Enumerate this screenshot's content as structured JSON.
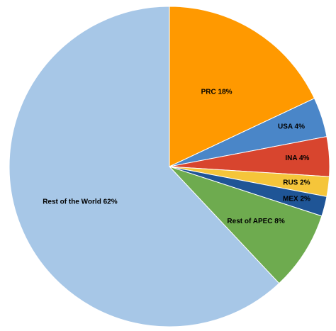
{
  "chart_data": {
    "type": "pie",
    "title": "",
    "slices": [
      {
        "label": "PRC 18%",
        "value": 18,
        "color": "#FF9900"
      },
      {
        "label": "USA 4%",
        "value": 4,
        "color": "#4A86C8"
      },
      {
        "label": "INA 4%",
        "value": 4,
        "color": "#D8452E"
      },
      {
        "label": "RUS 2%",
        "value": 2,
        "color": "#F5C53A"
      },
      {
        "label": "MEX 2%",
        "value": 2,
        "color": "#1F5596"
      },
      {
        "label": "Rest of APEC 8%",
        "value": 8,
        "color": "#6EAB4F"
      },
      {
        "label": "Rest of the World 62%",
        "value": 62,
        "color": "#A7C7E7"
      }
    ],
    "start_angle": "12 o'clock",
    "direction": "clockwise",
    "legend": "none"
  }
}
